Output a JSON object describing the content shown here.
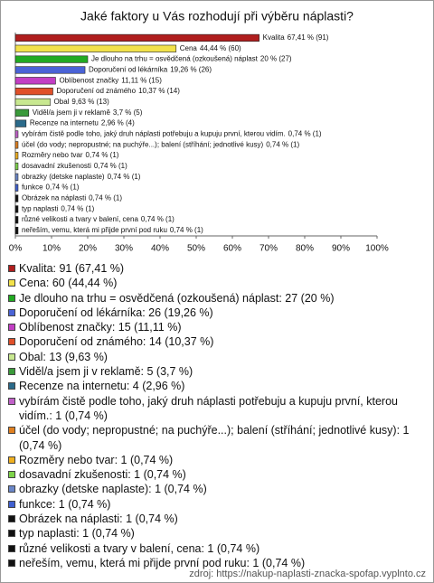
{
  "chart_data": {
    "type": "bar",
    "orientation": "horizontal",
    "title": "Jaké faktory u Vás rozhodují při výběru náplasti?",
    "categories": [
      "Kvalita",
      "Cena",
      "Je dlouho na trhu = osvědčená (ozkoušená) náplast",
      "Doporučení od lékárníka",
      "Oblíbenost značky",
      "Doporučení od známého",
      "Obal",
      "Viděl/a jsem ji v reklamě",
      "Recenze na internetu",
      "vybírám čistě podle toho, jaký druh náplasti potřebuju a kupuju první, kterou vidím.",
      "účel (do vody; nepropustné; na puchýře...); balení (stříhání; jednotlivé kusy)",
      "Rozměry nebo tvar",
      "dosavadní zkušenosti",
      "obrazky (detske naplaste)",
      "funkce",
      "Obrázek na náplasti",
      "typ naplasti",
      "různé velikosti a tvary v balení, cena",
      "neřeším, vemu, která mi přijde první pod ruku"
    ],
    "values": [
      67.41,
      44.44,
      20,
      19.26,
      11.11,
      10.37,
      9.63,
      3.7,
      2.96,
      0.74,
      0.74,
      0.74,
      0.74,
      0.74,
      0.74,
      0.74,
      0.74,
      0.74,
      0.74
    ],
    "value_labels": [
      "67,41 % (91)",
      "44,44 % (60)",
      "20 % (27)",
      "19,26 % (26)",
      "11,11 % (15)",
      "10,37 % (14)",
      "9,63 % (13)",
      "3,7 % (5)",
      "2,96 % (4)",
      "0,74 % (1)",
      "0,74 % (1)",
      "0,74 % (1)",
      "0,74 % (1)",
      "0,74 % (1)",
      "0,74 % (1)",
      "0,74 % (1)",
      "0,74 % (1)",
      "0,74 % (1)",
      "0,74 % (1)"
    ],
    "colors": [
      "#b01e1e",
      "#f2e24a",
      "#22aa22",
      "#4a63d6",
      "#c23ec4",
      "#e0502a",
      "#c8e890",
      "#3a9a3a",
      "#2a6a8a",
      "#c060c8",
      "#e08020",
      "#f0b020",
      "#7ed44a",
      "#6a86c8",
      "#4060d0",
      "#111111",
      "#111111",
      "#111111",
      "#111111"
    ],
    "xlim": [
      0,
      100
    ],
    "xticks": [
      {
        "value": 0,
        "label": "0%"
      },
      {
        "value": 10,
        "label": "10%"
      },
      {
        "value": 20,
        "label": "20%"
      },
      {
        "value": 30,
        "label": "30%"
      },
      {
        "value": 40,
        "label": "40%"
      },
      {
        "value": 50,
        "label": "50%"
      },
      {
        "value": 60,
        "label": "60%"
      },
      {
        "value": 70,
        "label": "70%"
      },
      {
        "value": 80,
        "label": "80%"
      },
      {
        "value": 90,
        "label": "90%"
      },
      {
        "value": 100,
        "label": "100%"
      }
    ],
    "legend_labels": [
      "Kvalita: 91 (67,41 %)",
      "Cena: 60 (44,44 %)",
      "Je dlouho na trhu = osvědčená (ozkoušená) náplast: 27 (20 %)",
      "Doporučení od lékárníka: 26 (19,26 %)",
      "Oblíbenost značky: 15 (11,11 %)",
      "Doporučení od známého: 14 (10,37 %)",
      "Obal: 13 (9,63 %)",
      "Viděl/a jsem ji v reklamě: 5 (3,7 %)",
      "Recenze na internetu: 4 (2,96 %)",
      "vybírám čistě podle toho, jaký druh náplasti potřebuju a kupuju první, kterou vidím.: 1 (0,74 %)",
      "účel (do vody; nepropustné; na puchýře...); balení (stříhání; jednotlivé kusy): 1 (0,74 %)",
      "Rozměry nebo tvar: 1 (0,74 %)",
      "dosavadní zkušenosti: 1 (0,74 %)",
      "obrazky (detske naplaste): 1 (0,74 %)",
      "funkce: 1 (0,74 %)",
      "Obrázek na náplasti: 1 (0,74 %)",
      "typ naplasti: 1 (0,74 %)",
      "různé velikosti a tvary v balení, cena: 1 (0,74 %)",
      "neřeším, vemu, která mi přijde první pod ruku: 1 (0,74 %)"
    ],
    "source": "zdroj: https://nakup-naplasti-znacka-spofap.vyplnto.cz"
  }
}
